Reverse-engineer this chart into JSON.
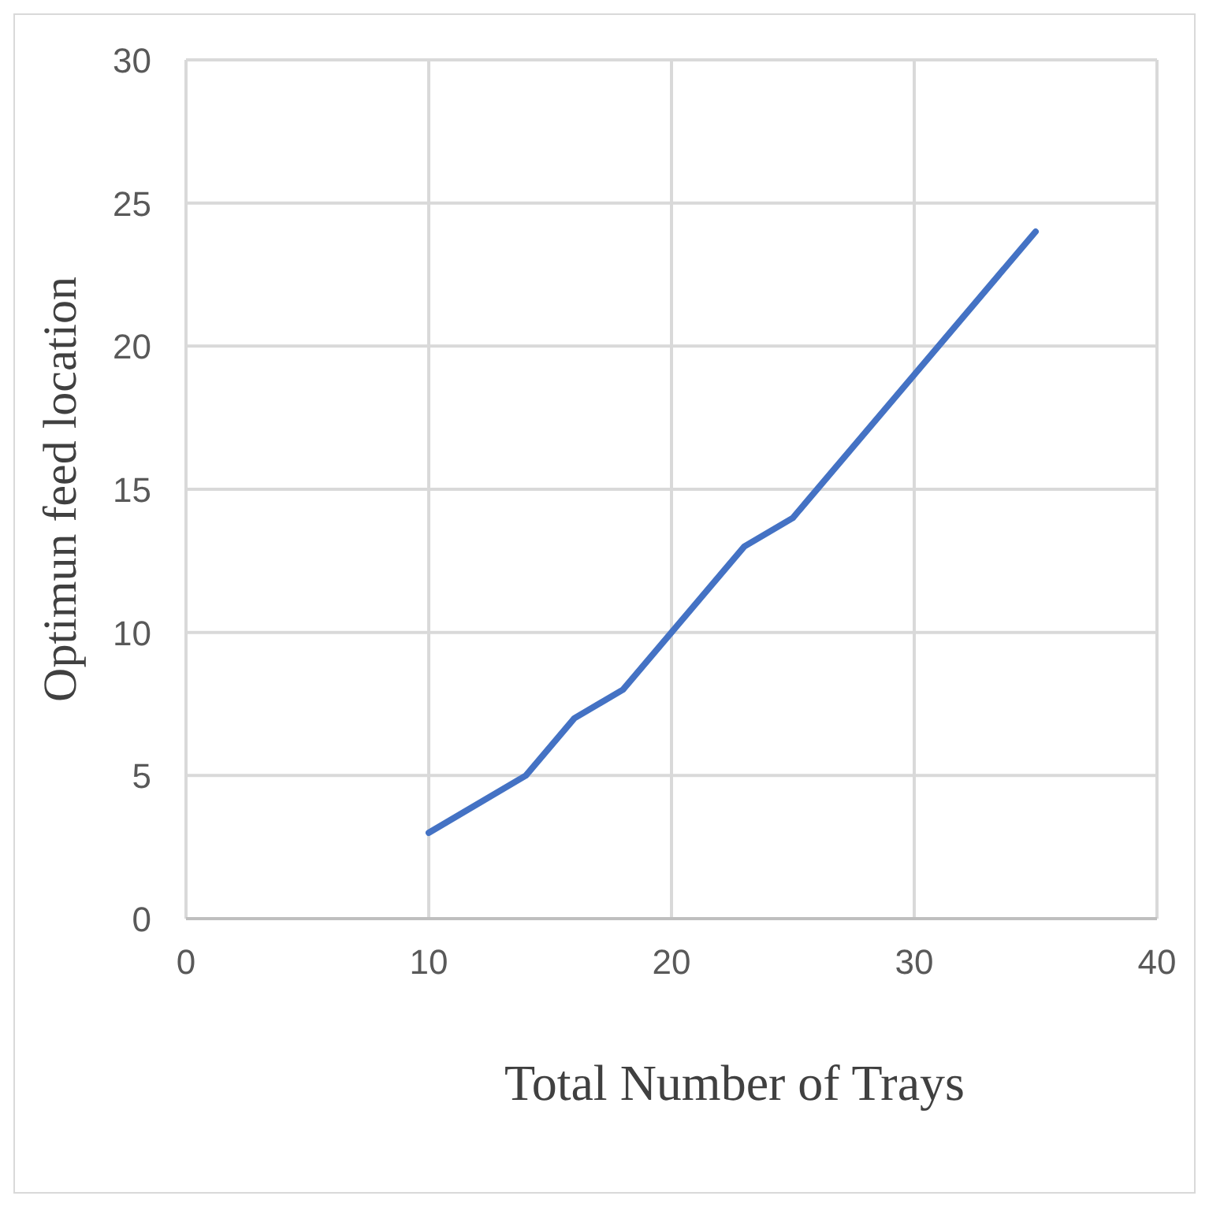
{
  "chart_data": {
    "type": "line",
    "xlabel": "Total Number of Trays",
    "ylabel": "Optimun feed location",
    "x": [
      10,
      14,
      16,
      18,
      23,
      25,
      35
    ],
    "series": [
      {
        "color": "#4472c4",
        "values": [
          3,
          5,
          7,
          8,
          13,
          14,
          24
        ]
      }
    ],
    "xlim": [
      0,
      40
    ],
    "xticks": [
      0,
      10,
      20,
      30,
      40
    ],
    "ylim": [
      0,
      30
    ],
    "yticks": [
      0,
      5,
      10,
      15,
      20,
      25,
      30
    ],
    "grid": true,
    "marker": "none",
    "line_style": "solid"
  }
}
